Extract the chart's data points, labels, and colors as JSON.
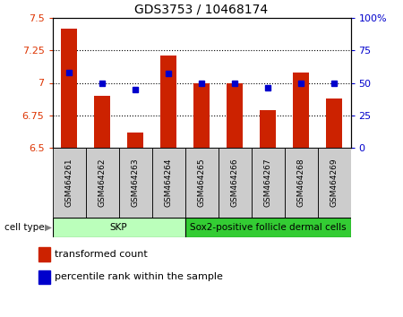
{
  "title": "GDS3753 / 10468174",
  "samples": [
    "GSM464261",
    "GSM464262",
    "GSM464263",
    "GSM464264",
    "GSM464265",
    "GSM464266",
    "GSM464267",
    "GSM464268",
    "GSM464269"
  ],
  "transformed_counts": [
    7.42,
    6.9,
    6.62,
    7.21,
    7.0,
    7.0,
    6.79,
    7.08,
    6.88
  ],
  "percentile_ranks": [
    58,
    50,
    45,
    57,
    50,
    50,
    46,
    50,
    50
  ],
  "ylim_left": [
    6.5,
    7.5
  ],
  "ylim_right": [
    0,
    100
  ],
  "yticks_left": [
    6.5,
    6.75,
    7.0,
    7.25,
    7.5
  ],
  "yticks_right": [
    0,
    25,
    50,
    75,
    100
  ],
  "ytick_labels_left": [
    "6.5",
    "6.75",
    "7",
    "7.25",
    "7.5"
  ],
  "ytick_labels_right": [
    "0",
    "25",
    "50",
    "75",
    "100%"
  ],
  "bar_color": "#cc2200",
  "dot_color": "#0000cc",
  "bar_bottom": 6.5,
  "cell_groups": [
    {
      "label": "SKP",
      "start": 0,
      "end": 3,
      "n": 4,
      "color": "#bbffbb"
    },
    {
      "label": "Sox2-positive follicle dermal cells",
      "start": 4,
      "end": 8,
      "n": 5,
      "color": "#33cc33"
    }
  ],
  "cell_type_label": "cell type",
  "legend_bar_label": "transformed count",
  "legend_dot_label": "percentile rank within the sample",
  "tick_color_left": "#dd3300",
  "tick_color_right": "#0000cc",
  "bar_width": 0.5,
  "sample_box_color": "#cccccc",
  "background_color": "#ffffff"
}
